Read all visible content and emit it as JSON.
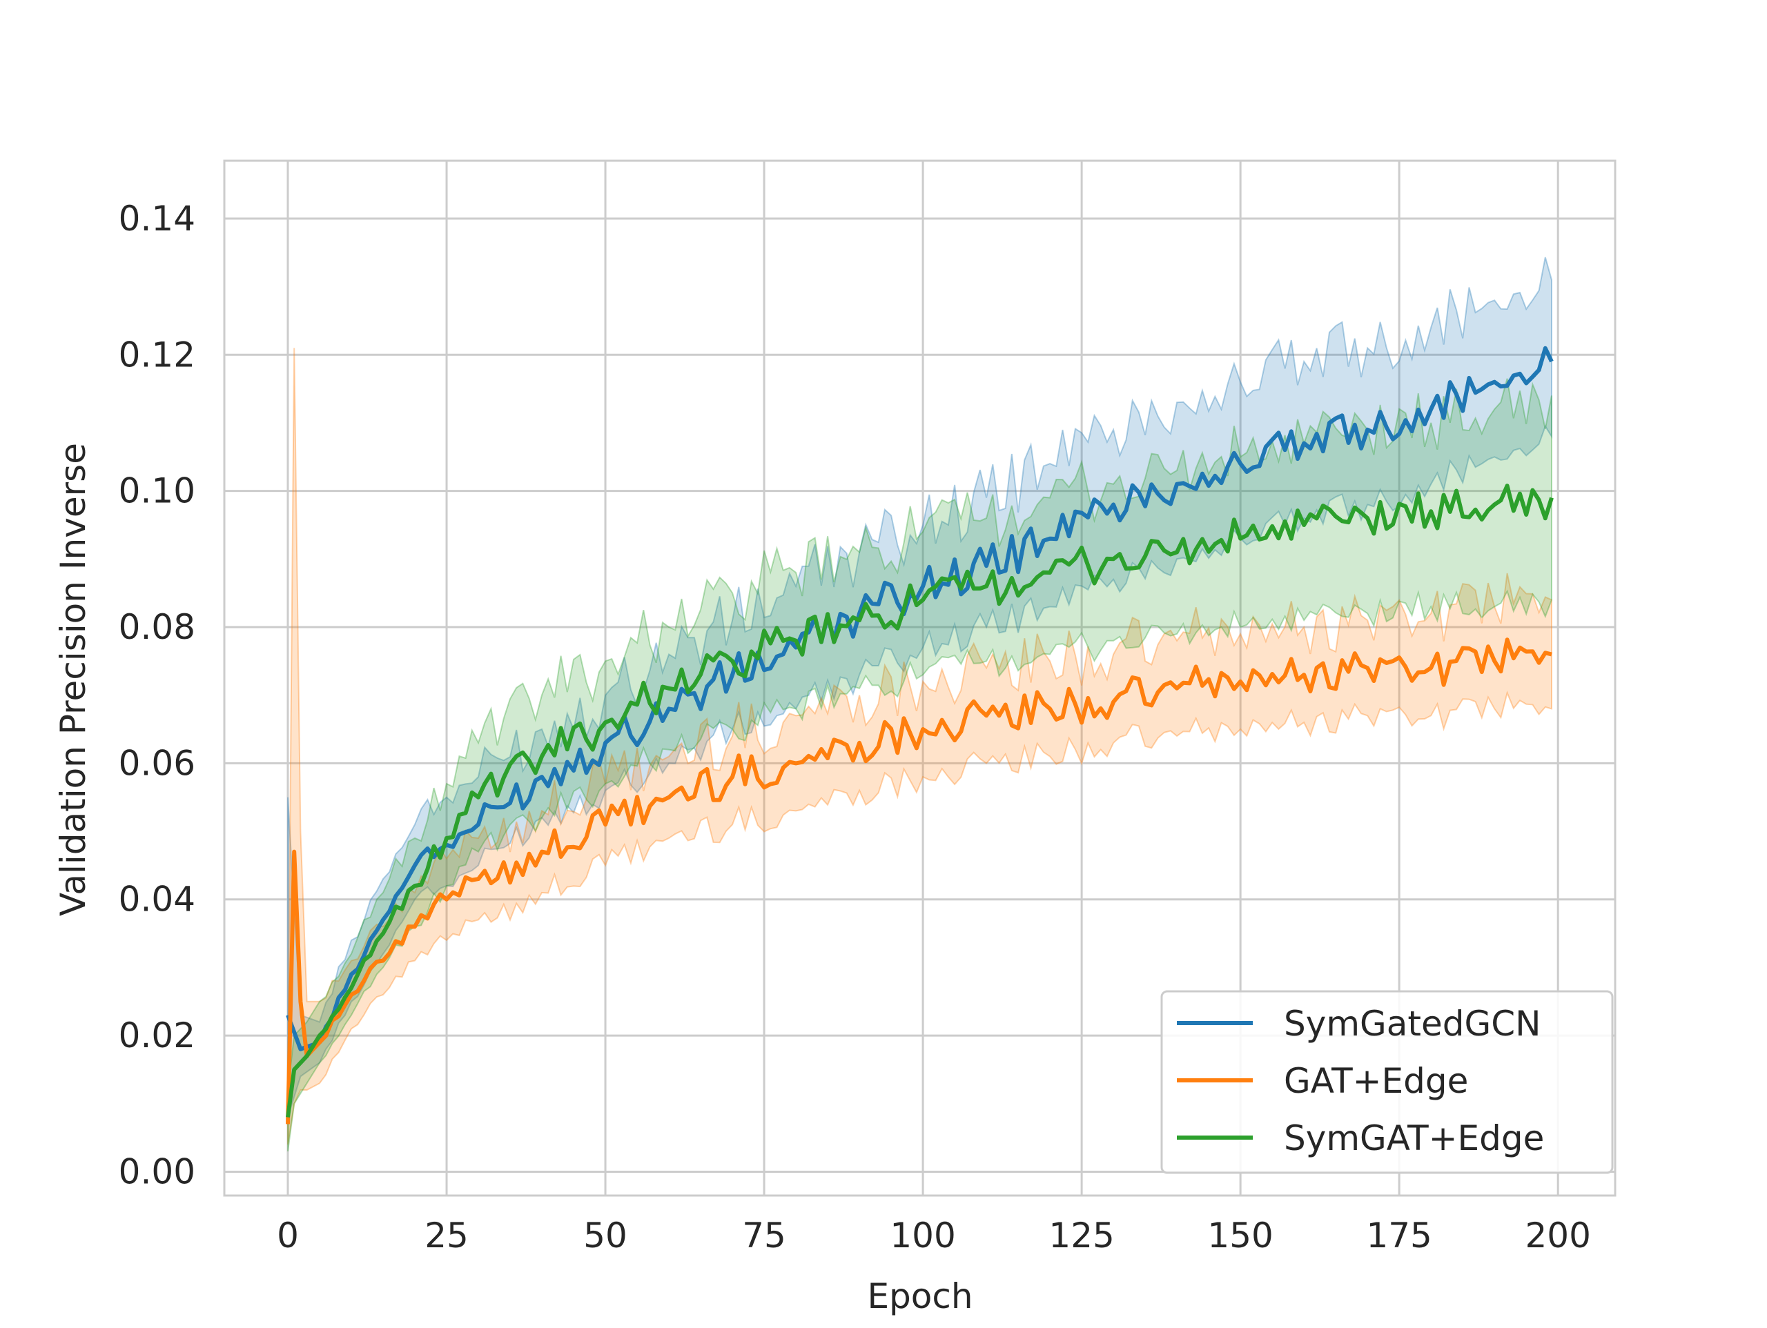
{
  "chart_data": {
    "type": "line",
    "title": "",
    "xlabel": "Epoch",
    "ylabel": "Validation Precision Inverse",
    "xlim": [
      -10,
      209
    ],
    "ylim": [
      -0.0035,
      0.1485
    ],
    "xticks": [
      0,
      25,
      50,
      75,
      100,
      125,
      150,
      175,
      200
    ],
    "xtick_labels": [
      "0",
      "25",
      "50",
      "75",
      "100",
      "125",
      "150",
      "175",
      "200"
    ],
    "yticks": [
      0.0,
      0.02,
      0.04,
      0.06,
      0.08,
      0.1,
      0.12,
      0.14
    ],
    "ytick_labels": [
      "0.00",
      "0.02",
      "0.04",
      "0.06",
      "0.08",
      "0.10",
      "0.12",
      "0.14"
    ],
    "grid": true,
    "legend_position": "lower-right",
    "shaded_band": "confidence interval around each series mean",
    "series": [
      {
        "name": "SymGatedGCN",
        "color": "#1f77b4",
        "x": [
          0,
          2,
          5,
          10,
          15,
          20,
          25,
          30,
          40,
          50,
          60,
          70,
          80,
          90,
          100,
          110,
          120,
          130,
          140,
          150,
          160,
          170,
          180,
          190,
          199
        ],
        "mean": [
          0.023,
          0.018,
          0.019,
          0.029,
          0.037,
          0.045,
          0.048,
          0.051,
          0.058,
          0.063,
          0.068,
          0.073,
          0.077,
          0.082,
          0.086,
          0.089,
          0.093,
          0.098,
          0.101,
          0.104,
          0.107,
          0.109,
          0.112,
          0.116,
          0.119
        ],
        "lower": [
          0.008,
          0.014,
          0.016,
          0.025,
          0.032,
          0.04,
          0.042,
          0.045,
          0.052,
          0.056,
          0.06,
          0.065,
          0.068,
          0.073,
          0.077,
          0.08,
          0.083,
          0.087,
          0.09,
          0.093,
          0.096,
          0.098,
          0.101,
          0.105,
          0.108
        ],
        "upper": [
          0.055,
          0.023,
          0.022,
          0.034,
          0.043,
          0.051,
          0.055,
          0.058,
          0.065,
          0.07,
          0.076,
          0.081,
          0.086,
          0.091,
          0.095,
          0.099,
          0.104,
          0.109,
          0.113,
          0.116,
          0.119,
          0.121,
          0.124,
          0.128,
          0.131
        ]
      },
      {
        "name": "GAT+Edge",
        "color": "#ff7f0e",
        "x": [
          0,
          1,
          2,
          3,
          5,
          10,
          15,
          20,
          25,
          30,
          40,
          50,
          60,
          70,
          80,
          90,
          100,
          110,
          120,
          130,
          140,
          150,
          160,
          170,
          180,
          190,
          199
        ],
        "mean": [
          0.007,
          0.047,
          0.025,
          0.017,
          0.019,
          0.026,
          0.031,
          0.036,
          0.04,
          0.043,
          0.047,
          0.051,
          0.055,
          0.058,
          0.06,
          0.063,
          0.065,
          0.067,
          0.068,
          0.069,
          0.071,
          0.072,
          0.073,
          0.074,
          0.074,
          0.075,
          0.076
        ],
        "lower": [
          0.004,
          0.01,
          0.012,
          0.012,
          0.013,
          0.021,
          0.026,
          0.031,
          0.034,
          0.037,
          0.041,
          0.045,
          0.049,
          0.051,
          0.053,
          0.056,
          0.058,
          0.06,
          0.061,
          0.063,
          0.064,
          0.065,
          0.066,
          0.067,
          0.067,
          0.068,
          0.068
        ],
        "upper": [
          0.012,
          0.121,
          0.05,
          0.025,
          0.025,
          0.031,
          0.036,
          0.041,
          0.046,
          0.049,
          0.053,
          0.057,
          0.061,
          0.064,
          0.067,
          0.07,
          0.072,
          0.074,
          0.075,
          0.076,
          0.078,
          0.079,
          0.08,
          0.081,
          0.082,
          0.083,
          0.084
        ]
      },
      {
        "name": "SymGAT+Edge",
        "color": "#2ca02c",
        "x": [
          0,
          1,
          3,
          5,
          10,
          15,
          20,
          25,
          30,
          40,
          50,
          60,
          70,
          80,
          90,
          100,
          110,
          120,
          130,
          140,
          150,
          160,
          170,
          180,
          190,
          199
        ],
        "mean": [
          0.008,
          0.015,
          0.017,
          0.02,
          0.027,
          0.035,
          0.042,
          0.049,
          0.055,
          0.061,
          0.066,
          0.071,
          0.075,
          0.078,
          0.081,
          0.084,
          0.086,
          0.088,
          0.09,
          0.091,
          0.093,
          0.095,
          0.096,
          0.097,
          0.098,
          0.099
        ],
        "lower": [
          0.003,
          0.01,
          0.013,
          0.016,
          0.023,
          0.03,
          0.036,
          0.042,
          0.047,
          0.052,
          0.057,
          0.062,
          0.065,
          0.068,
          0.071,
          0.073,
          0.075,
          0.076,
          0.078,
          0.079,
          0.08,
          0.081,
          0.082,
          0.083,
          0.083,
          0.084
        ],
        "upper": [
          0.012,
          0.02,
          0.022,
          0.025,
          0.032,
          0.041,
          0.049,
          0.057,
          0.063,
          0.07,
          0.075,
          0.08,
          0.085,
          0.088,
          0.091,
          0.094,
          0.096,
          0.099,
          0.101,
          0.103,
          0.105,
          0.107,
          0.109,
          0.11,
          0.112,
          0.114
        ]
      }
    ]
  }
}
